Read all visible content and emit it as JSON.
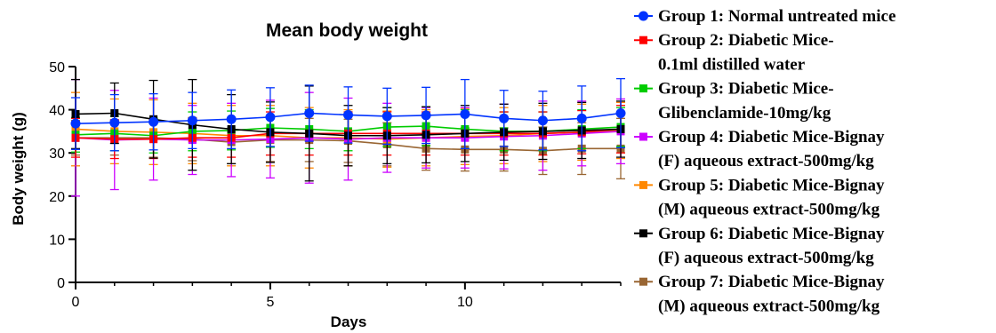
{
  "chart_data": {
    "type": "line",
    "title": "Mean body weight",
    "xlabel": "Days",
    "ylabel": "Body weight (g)",
    "xlim": [
      0,
      14
    ],
    "ylim": [
      0,
      50
    ],
    "xticks": [
      0,
      5,
      10
    ],
    "yticks": [
      0,
      10,
      20,
      30,
      40,
      50
    ],
    "grid": false,
    "legend_position": "right",
    "x": [
      0,
      1,
      2,
      3,
      4,
      5,
      6,
      7,
      8,
      9,
      10,
      11,
      12,
      13,
      14
    ],
    "series": [
      {
        "name": "Group 1: Normal untreated mice",
        "legend_lines": [
          "Group 1: Normal untreated mice"
        ],
        "color": "#0033ff",
        "marker": "circle",
        "values": [
          36.8,
          37.0,
          37.2,
          37.5,
          37.8,
          38.3,
          39.2,
          38.8,
          38.5,
          38.7,
          39.0,
          38.0,
          37.5,
          38.0,
          39.2
        ],
        "errors": [
          6.0,
          6.5,
          6.5,
          6.5,
          6.8,
          6.8,
          6.5,
          6.5,
          6.5,
          6.5,
          8.0,
          6.5,
          6.8,
          7.5,
          8.0
        ]
      },
      {
        "name": "Group 2: Diabetic Mice-0.1ml distilled water",
        "legend_lines": [
          "Group 2: Diabetic Mice-",
          "0.1ml distilled water"
        ],
        "color": "#ff0000",
        "marker": "square",
        "values": [
          33.5,
          33.2,
          33.2,
          33.5,
          33.5,
          34.5,
          34.5,
          34.5,
          34.5,
          34.5,
          34.5,
          34.5,
          34.5,
          34.8,
          35.5
        ],
        "errors": [
          4.5,
          4.5,
          4.5,
          4.5,
          4.5,
          5.0,
          5.0,
          5.0,
          5.0,
          5.0,
          5.0,
          5.0,
          5.0,
          5.0,
          5.5
        ]
      },
      {
        "name": "Group 3: Diabetic Mice-Glibenclamide-10mg/kg",
        "legend_lines": [
          "Group 3: Diabetic Mice-",
          "Glibenclamide-10mg/kg"
        ],
        "color": "#00cc00",
        "marker": "square",
        "values": [
          34.2,
          34.5,
          34.0,
          35.0,
          35.2,
          35.8,
          35.5,
          35.0,
          36.0,
          36.2,
          35.5,
          35.0,
          35.0,
          35.5,
          36.0
        ],
        "errors": [
          4.0,
          4.0,
          4.0,
          4.5,
          4.5,
          4.5,
          4.5,
          4.5,
          4.5,
          4.5,
          4.5,
          4.5,
          4.5,
          4.5,
          4.5
        ]
      },
      {
        "name": "Group 4: Diabetic Mice-Bignay (F) aqueous extract-500mg/kg",
        "legend_lines": [
          "Group 4: Diabetic Mice-Bignay",
          "(F) aqueous extract-500mg/kg"
        ],
        "color": "#cc00ff",
        "marker": "square",
        "values": [
          33.5,
          33.0,
          33.2,
          33.0,
          33.0,
          33.2,
          33.5,
          33.2,
          33.5,
          33.5,
          33.5,
          33.8,
          34.0,
          34.5,
          35.0
        ],
        "errors": [
          13.5,
          11.5,
          9.5,
          8.0,
          8.5,
          9.0,
          10.5,
          9.5,
          8.0,
          7.0,
          7.0,
          7.5,
          8.0,
          7.5,
          7.5
        ]
      },
      {
        "name": "Group 5: Diabetic Mice-Bignay (M) aqueous extract-500mg/kg",
        "legend_lines": [
          "Group 5: Diabetic Mice-Bignay",
          "(M) aqueous extract-500mg/kg"
        ],
        "color": "#ff8800",
        "marker": "square",
        "values": [
          35.5,
          35.0,
          34.8,
          34.5,
          34.0,
          34.0,
          33.5,
          33.5,
          33.2,
          33.5,
          33.8,
          34.0,
          34.5,
          34.8,
          35.2
        ],
        "errors": [
          8.5,
          7.5,
          7.5,
          7.0,
          7.0,
          7.0,
          7.0,
          6.5,
          6.5,
          6.5,
          6.5,
          6.5,
          6.5,
          6.5,
          6.5
        ]
      },
      {
        "name": "Group 6: Diabetic Mice-Bignay (F) aqueous extract-500mg/kg",
        "legend_lines": [
          "Group 6: Diabetic Mice-Bignay",
          "(F) aqueous extract-500mg/kg"
        ],
        "color": "#000000",
        "marker": "square",
        "values": [
          39.0,
          39.2,
          37.8,
          36.5,
          35.5,
          34.8,
          34.5,
          34.0,
          34.0,
          34.2,
          34.5,
          34.8,
          35.0,
          35.2,
          35.5
        ],
        "errors": [
          8.0,
          7.0,
          9.0,
          10.5,
          8.0,
          7.0,
          11.0,
          7.0,
          6.5,
          6.5,
          6.5,
          6.5,
          6.5,
          6.5,
          6.5
        ]
      },
      {
        "name": "Group 7: Diabetic Mice-Bignay (M) aqueous extract-500mg/kg",
        "legend_lines": [
          "Group 7: Diabetic Mice-Bignay",
          "(M) aqueous extract-500mg/kg"
        ],
        "color": "#996633",
        "marker": "square",
        "values": [
          33.5,
          33.5,
          33.5,
          33.2,
          32.5,
          33.0,
          33.0,
          32.8,
          32.0,
          31.0,
          30.8,
          30.8,
          30.5,
          31.0,
          31.0
        ],
        "errors": [
          4.0,
          4.0,
          4.5,
          5.0,
          5.0,
          5.0,
          5.0,
          5.0,
          5.0,
          5.0,
          5.0,
          5.0,
          5.5,
          6.0,
          7.0
        ]
      }
    ]
  }
}
